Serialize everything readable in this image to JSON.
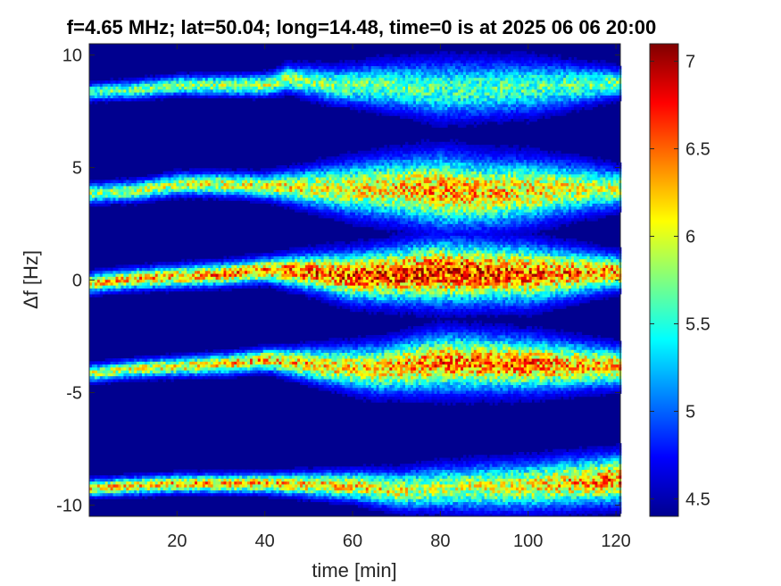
{
  "chart_data": {
    "type": "heatmap",
    "title": "f=4.65 MHz;  lat=50.04; long=14.48, time=0 is at 2025 06 06 20:00",
    "xlabel": "time [min]",
    "ylabel": "Δf [Hz]",
    "xlim": [
      0,
      121
    ],
    "ylim": [
      -10.5,
      10.5
    ],
    "xticks": [
      20,
      40,
      60,
      80,
      100,
      120
    ],
    "yticks": [
      -10,
      -5,
      0,
      5,
      10
    ],
    "ytick_labels": [
      "-10",
      "-5",
      "0",
      "5",
      "10"
    ],
    "colorbar": {
      "range": [
        4.4,
        7.1
      ],
      "ticks": [
        4.5,
        5,
        5.5,
        6,
        6.5,
        7
      ],
      "tick_labels": [
        "4.5",
        "5",
        "5.5",
        "6",
        "6.5",
        "7"
      ],
      "colormap": "jet"
    },
    "background_value": 4.45,
    "bands": [
      {
        "center": 8.5,
        "trace": [
          [
            0,
            8.3
          ],
          [
            10,
            8.4
          ],
          [
            20,
            8.6
          ],
          [
            30,
            8.6
          ],
          [
            40,
            8.6
          ],
          [
            45,
            8.9
          ],
          [
            55,
            8.6
          ],
          [
            65,
            8.6
          ],
          [
            80,
            8.4
          ],
          [
            100,
            8.5
          ],
          [
            120,
            8.7
          ]
        ],
        "width": [
          [
            0,
            0.35
          ],
          [
            40,
            0.45
          ],
          [
            60,
            0.8
          ],
          [
            80,
            1.2
          ],
          [
            100,
            1.1
          ],
          [
            120,
            0.6
          ]
        ],
        "level": [
          [
            0,
            5.7
          ],
          [
            40,
            6.0
          ],
          [
            60,
            5.8
          ],
          [
            80,
            5.7
          ],
          [
            100,
            5.7
          ],
          [
            120,
            5.8
          ]
        ]
      },
      {
        "center": 4,
        "trace": [
          [
            0,
            3.8
          ],
          [
            10,
            3.9
          ],
          [
            20,
            4.2
          ],
          [
            30,
            4.2
          ],
          [
            40,
            4.1
          ],
          [
            60,
            4.0
          ],
          [
            70,
            4.0
          ],
          [
            90,
            3.8
          ],
          [
            110,
            4.0
          ],
          [
            120,
            4.0
          ]
        ],
        "width": [
          [
            0,
            0.4
          ],
          [
            40,
            0.5
          ],
          [
            60,
            1.1
          ],
          [
            80,
            1.5
          ],
          [
            100,
            1.3
          ],
          [
            120,
            0.8
          ]
        ],
        "level": [
          [
            0,
            5.9
          ],
          [
            40,
            6.2
          ],
          [
            60,
            6.2
          ],
          [
            80,
            6.5
          ],
          [
            100,
            6.3
          ],
          [
            120,
            6.0
          ]
        ]
      },
      {
        "center": 0,
        "trace": [
          [
            0,
            -0.2
          ],
          [
            10,
            0.0
          ],
          [
            20,
            0.1
          ],
          [
            30,
            0.2
          ],
          [
            40,
            0.4
          ],
          [
            50,
            0.3
          ],
          [
            60,
            0.1
          ],
          [
            80,
            0.3
          ],
          [
            100,
            0.2
          ],
          [
            120,
            0.3
          ]
        ],
        "width": [
          [
            0,
            0.4
          ],
          [
            40,
            0.5
          ],
          [
            60,
            1.0
          ],
          [
            80,
            1.3
          ],
          [
            100,
            1.2
          ],
          [
            120,
            0.7
          ]
        ],
        "level": [
          [
            0,
            6.3
          ],
          [
            40,
            6.6
          ],
          [
            60,
            6.8
          ],
          [
            80,
            6.9
          ],
          [
            100,
            6.7
          ],
          [
            120,
            6.5
          ]
        ]
      },
      {
        "center": -4,
        "trace": [
          [
            0,
            -4.2
          ],
          [
            10,
            -4.0
          ],
          [
            20,
            -3.9
          ],
          [
            30,
            -3.8
          ],
          [
            40,
            -3.6
          ],
          [
            55,
            -3.9
          ],
          [
            65,
            -4.0
          ],
          [
            80,
            -3.7
          ],
          [
            100,
            -3.8
          ],
          [
            120,
            -3.9
          ]
        ],
        "width": [
          [
            0,
            0.35
          ],
          [
            40,
            0.45
          ],
          [
            60,
            0.9
          ],
          [
            80,
            1.2
          ],
          [
            100,
            1.1
          ],
          [
            120,
            0.8
          ]
        ],
        "level": [
          [
            0,
            6.0
          ],
          [
            40,
            6.4
          ],
          [
            60,
            6.3
          ],
          [
            80,
            6.6
          ],
          [
            100,
            6.6
          ],
          [
            120,
            6.4
          ]
        ]
      },
      {
        "center": -9.3,
        "trace": [
          [
            0,
            -9.3
          ],
          [
            10,
            -9.2
          ],
          [
            20,
            -9.1
          ],
          [
            40,
            -9.1
          ],
          [
            60,
            -9.2
          ],
          [
            70,
            -9.4
          ],
          [
            80,
            -9.3
          ],
          [
            100,
            -9.2
          ],
          [
            120,
            -8.9
          ]
        ],
        "width": [
          [
            0,
            0.35
          ],
          [
            40,
            0.4
          ],
          [
            60,
            0.6
          ],
          [
            80,
            0.9
          ],
          [
            100,
            1.0
          ],
          [
            120,
            1.0
          ]
        ],
        "level": [
          [
            0,
            6.3
          ],
          [
            40,
            6.4
          ],
          [
            60,
            6.3
          ],
          [
            80,
            6.0
          ],
          [
            100,
            6.2
          ],
          [
            120,
            6.6
          ]
        ]
      }
    ]
  }
}
